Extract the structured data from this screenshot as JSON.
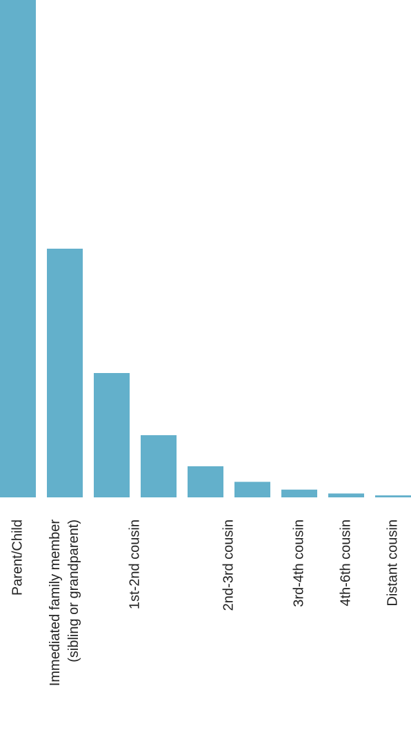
{
  "chart_data": {
    "type": "bar",
    "categories": [
      "Parent/Child",
      [
        "Immediated family member",
        "(sibling or grandparent)"
      ],
      "1st-2nd cousin",
      null,
      "2nd-3rd cousin",
      null,
      "3rd-4th cousin",
      "4th-6th cousin",
      "Distant cousin"
    ],
    "values": [
      50,
      25,
      12.5,
      6.25,
      3.125,
      1.5625,
      0.78,
      0.39,
      0.2
    ],
    "color": "#63b0cb",
    "ylim": [
      0,
      50
    ]
  }
}
